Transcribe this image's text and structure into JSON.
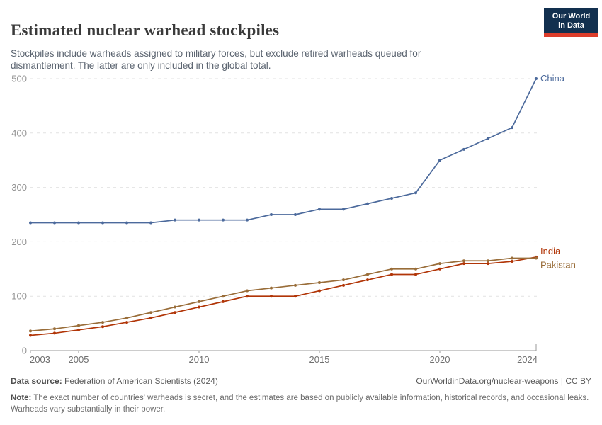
{
  "header": {
    "title": "Estimated nuclear warhead stockpiles",
    "subtitle": "Stockpiles include warheads assigned to military forces, but exclude retired warheads queued for dismantlement. The latter are only included in the global total.",
    "logo": {
      "line1": "Our World",
      "line2": "in Data",
      "bg_color": "#12304F",
      "bar_color": "#DC3D2B"
    }
  },
  "chart_data": {
    "type": "line",
    "title": "Estimated nuclear warhead stockpiles",
    "x": [
      2003,
      2004,
      2005,
      2006,
      2007,
      2008,
      2009,
      2010,
      2011,
      2012,
      2013,
      2014,
      2015,
      2016,
      2017,
      2018,
      2019,
      2020,
      2021,
      2022,
      2023,
      2024
    ],
    "series": [
      {
        "name": "China",
        "color": "#4C6A9C",
        "values": [
          235,
          235,
          235,
          235,
          235,
          235,
          240,
          240,
          240,
          240,
          250,
          250,
          260,
          260,
          270,
          280,
          290,
          350,
          370,
          390,
          410,
          500
        ]
      },
      {
        "name": "India",
        "color": "#B13507",
        "values": [
          28,
          32,
          38,
          44,
          52,
          60,
          70,
          80,
          90,
          100,
          100,
          100,
          110,
          120,
          130,
          140,
          140,
          150,
          160,
          160,
          164,
          172
        ]
      },
      {
        "name": "Pakistan",
        "color": "#996D39",
        "values": [
          36,
          40,
          46,
          52,
          60,
          70,
          80,
          90,
          100,
          110,
          115,
          120,
          125,
          130,
          140,
          150,
          150,
          160,
          165,
          165,
          170,
          170
        ]
      }
    ],
    "xlabel": "",
    "ylabel": "",
    "ylim": [
      0,
      500
    ],
    "yticks": [
      0,
      100,
      200,
      300,
      400,
      500
    ],
    "xticks": [
      2003,
      2005,
      2010,
      2015,
      2020,
      2024
    ],
    "grid": "horizontal dashed",
    "legend_position": "end-of-line labels",
    "label_offsets": {
      "China": 0,
      "India": -8,
      "Pakistan": 10
    },
    "axis_color": "#999999",
    "grid_color": "#e2e2e2",
    "ytick_label_color": "#949494",
    "xtick_label_color": "#6f6f6f"
  },
  "footer": {
    "source_label": "Data source:",
    "source_text": " Federation of American Scientists (2024)",
    "link_text": "OurWorldinData.org/nuclear-weapons | CC BY",
    "note_label": "Note:",
    "note_text": " The exact number of countries' warheads is secret, and the estimates are based on publicly available information, historical records, and occasional leaks. Warheads vary substantially in their power."
  }
}
